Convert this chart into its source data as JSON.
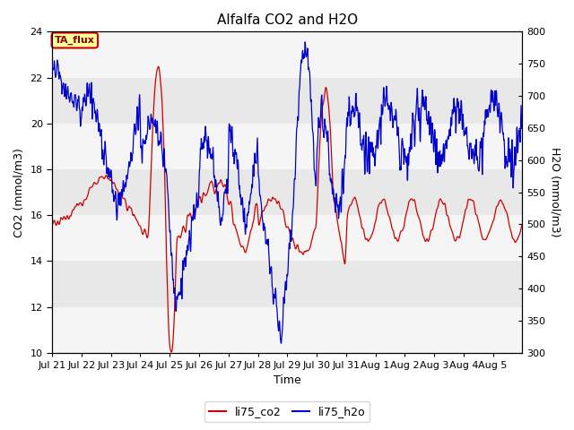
{
  "title": "Alfalfa CO2 and H2O",
  "xlabel": "Time",
  "ylabel_left": "CO2 (mmol/m3)",
  "ylabel_right": "H2O (mmol/m3)",
  "ylim_left": [
    10,
    24
  ],
  "ylim_right": [
    300,
    800
  ],
  "yticks_left": [
    10,
    12,
    14,
    16,
    18,
    20,
    22,
    24
  ],
  "yticks_right": [
    300,
    350,
    400,
    450,
    500,
    550,
    600,
    650,
    700,
    750,
    800
  ],
  "legend_labels": [
    "li75_co2",
    "li75_h2o"
  ],
  "line_color_co2": "#cc0000",
  "line_color_h2o": "#0000cc",
  "background_color": "#ffffff",
  "plot_bg_color": "#e8e8e8",
  "band_light_color": "#f5f5f5",
  "annotation_text": "TA_flux",
  "annotation_bg": "#ffff99",
  "annotation_border": "#cc0000",
  "title_fontsize": 11,
  "axis_fontsize": 9,
  "tick_fontsize": 8,
  "n_points": 1600,
  "x_tick_labels": [
    "Jul 21",
    "Jul 22",
    "Jul 23",
    "Jul 24",
    "Jul 25",
    "Jul 26",
    "Jul 27",
    "Jul 28",
    "Jul 29",
    "Jul 30",
    "Jul 31",
    "Aug 1",
    "Aug 2",
    "Aug 3",
    "Aug 4",
    "Aug 5"
  ]
}
